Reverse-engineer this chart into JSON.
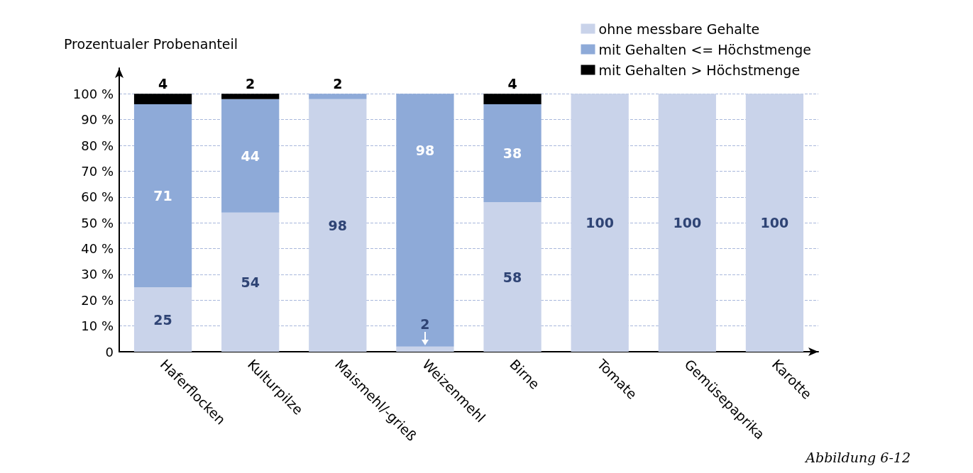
{
  "chart_data": {
    "type": "bar",
    "stacked": true,
    "ylabel": "Prozentualer Probenanteil",
    "categories": [
      "Haferflocken",
      "Kulturpilze",
      "Maismehl/-grieß",
      "Weizenmehl",
      "Birne",
      "Tomate",
      "Gemüsepaprika",
      "Karotte"
    ],
    "series": [
      {
        "name": "ohne messbare Gehalte",
        "color": "#c9d3ea",
        "values": [
          25,
          54,
          98,
          2,
          58,
          100,
          100,
          100
        ],
        "value_labels": [
          "25",
          "54",
          "98",
          "2",
          "58",
          "100",
          "100",
          "100"
        ]
      },
      {
        "name": "mit Gehalten <= Höchstmenge",
        "color": "#8eaad8",
        "values": [
          71,
          44,
          2,
          98,
          38,
          0,
          0,
          0
        ],
        "value_labels": [
          "71",
          "44",
          "2",
          "98",
          "38",
          null,
          null,
          null
        ]
      },
      {
        "name": "mit Gehalten > Höchstmenge",
        "color": "#000000",
        "values": [
          4,
          2,
          0,
          0,
          4,
          0,
          0,
          0
        ],
        "value_labels": [
          "4",
          "2",
          null,
          null,
          "4",
          null,
          null,
          null
        ]
      }
    ],
    "ylim": [
      0,
      110
    ],
    "yticks": [
      0,
      {
        "value": 10,
        "label": "10 %"
      },
      {
        "value": 20,
        "label": "20 %"
      },
      {
        "value": 30,
        "label": "30 %"
      },
      {
        "value": 40,
        "label": "40 %"
      },
      {
        "value": 50,
        "label": "50 %"
      },
      {
        "value": 60,
        "label": "60 %"
      },
      {
        "value": 70,
        "label": "70 %"
      },
      {
        "value": 80,
        "label": "80 %"
      },
      {
        "value": 90,
        "label": "90 %"
      },
      {
        "value": 100,
        "label": "100 %"
      }
    ],
    "grid": "y",
    "legend": "top right",
    "annotations": [
      "Abbildung 6-12"
    ]
  }
}
